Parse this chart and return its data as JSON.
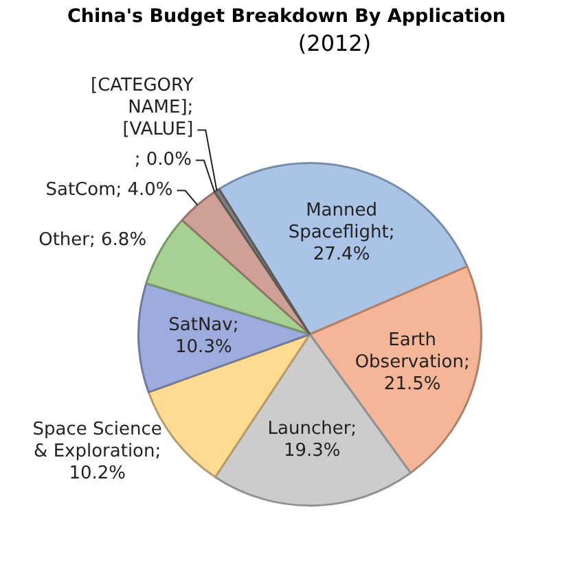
{
  "chart_data": {
    "type": "pie",
    "title": "China's Budget Breakdown By Application",
    "subtitle": "(2012)",
    "categories": [
      "Manned Spaceflight",
      "Earth Observation",
      "Launcher",
      "Space Science & Exploration",
      "SatNav",
      "Other",
      "SatCom",
      null,
      "[CATEGORY NAME]"
    ],
    "values": [
      27.4,
      21.5,
      19.3,
      10.2,
      10.3,
      6.8,
      4.0,
      0.0,
      0.5
    ],
    "value_labels": [
      "; 27.4%",
      "; 21.5%",
      "; 19.3%",
      "; 10.2%",
      "; 10.3%",
      "; 6.8%",
      "; 4.0%",
      "; 0.0%",
      "; [VALUE]"
    ],
    "colors": [
      "#a9c4e6",
      "#f5b597",
      "#cccccc",
      "#ffdb91",
      "#9eabdd",
      "#a6d192",
      "#cfa095",
      "#8d8d8d",
      "#7f7f7f"
    ],
    "legend": false
  }
}
